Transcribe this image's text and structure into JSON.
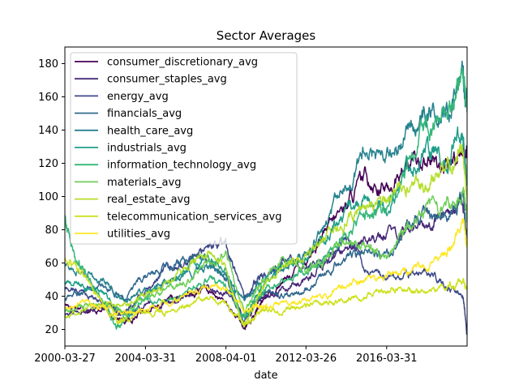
{
  "chart_data": {
    "type": "line",
    "title": "Sector Averages",
    "xlabel": "date",
    "ylabel": "",
    "xlim": [
      "2000-03-27",
      "2020-04-01"
    ],
    "ylim": [
      10,
      190
    ],
    "x_ticks": [
      "2000-03-27",
      "2004-03-31",
      "2008-04-01",
      "2012-03-26",
      "2016-03-31"
    ],
    "y_ticks": [
      20,
      40,
      60,
      80,
      100,
      120,
      140,
      160,
      180
    ],
    "legend_position": "top-left",
    "grid": false,
    "series": [
      {
        "name": "consumer_discretionary_avg",
        "color": "#440154",
        "points": [
          [
            "2000-03-27",
            35
          ],
          [
            "2001-03-27",
            33
          ],
          [
            "2002-03-27",
            31
          ],
          [
            "2003-03-27",
            24
          ],
          [
            "2004-03-27",
            32
          ],
          [
            "2005-03-27",
            36
          ],
          [
            "2006-03-27",
            40
          ],
          [
            "2007-03-27",
            44
          ],
          [
            "2008-03-27",
            36
          ],
          [
            "2009-03-01",
            20
          ],
          [
            "2009-09-27",
            30
          ],
          [
            "2010-03-27",
            40
          ],
          [
            "2011-03-27",
            50
          ],
          [
            "2012-03-27",
            62
          ],
          [
            "2013-03-27",
            78
          ],
          [
            "2014-03-27",
            96
          ],
          [
            "2015-03-27",
            112
          ],
          [
            "2016-03-27",
            104
          ],
          [
            "2017-03-27",
            118
          ],
          [
            "2018-03-27",
            124
          ],
          [
            "2019-03-27",
            116
          ],
          [
            "2020-01-15",
            130
          ],
          [
            "2020-04-01",
            124
          ]
        ]
      },
      {
        "name": "consumer_staples_avg",
        "color": "#482878",
        "points": [
          [
            "2000-03-27",
            30
          ],
          [
            "2001-03-27",
            32
          ],
          [
            "2002-03-27",
            34
          ],
          [
            "2003-03-27",
            30
          ],
          [
            "2004-03-27",
            33
          ],
          [
            "2005-03-27",
            36
          ],
          [
            "2006-03-27",
            40
          ],
          [
            "2007-03-27",
            44
          ],
          [
            "2008-03-27",
            42
          ],
          [
            "2009-03-01",
            28
          ],
          [
            "2009-09-27",
            36
          ],
          [
            "2010-03-27",
            40
          ],
          [
            "2011-03-27",
            44
          ],
          [
            "2012-03-27",
            50
          ],
          [
            "2013-03-27",
            60
          ],
          [
            "2014-03-27",
            68
          ],
          [
            "2015-03-27",
            74
          ],
          [
            "2016-03-27",
            78
          ],
          [
            "2017-03-27",
            80
          ],
          [
            "2018-03-27",
            84
          ],
          [
            "2019-03-27",
            90
          ],
          [
            "2020-01-15",
            98
          ],
          [
            "2020-04-01",
            90
          ]
        ]
      },
      {
        "name": "energy_avg",
        "color": "#3e4989",
        "points": [
          [
            "2000-03-27",
            45
          ],
          [
            "2001-03-27",
            42
          ],
          [
            "2002-03-27",
            36
          ],
          [
            "2003-03-27",
            30
          ],
          [
            "2004-03-27",
            42
          ],
          [
            "2005-03-27",
            55
          ],
          [
            "2006-03-27",
            62
          ],
          [
            "2007-03-27",
            68
          ],
          [
            "2008-03-27",
            72
          ],
          [
            "2009-03-01",
            38
          ],
          [
            "2009-09-27",
            48
          ],
          [
            "2010-03-27",
            52
          ],
          [
            "2011-03-27",
            62
          ],
          [
            "2012-03-27",
            58
          ],
          [
            "2013-03-27",
            62
          ],
          [
            "2014-03-27",
            74
          ],
          [
            "2015-03-27",
            58
          ],
          [
            "2016-03-27",
            48
          ],
          [
            "2017-03-27",
            54
          ],
          [
            "2018-03-27",
            56
          ],
          [
            "2019-03-27",
            46
          ],
          [
            "2020-01-15",
            42
          ],
          [
            "2020-04-01",
            18
          ]
        ]
      },
      {
        "name": "financials_avg",
        "color": "#31688e",
        "points": [
          [
            "2000-03-27",
            38
          ],
          [
            "2001-03-27",
            44
          ],
          [
            "2002-03-27",
            46
          ],
          [
            "2003-03-27",
            38
          ],
          [
            "2004-03-27",
            52
          ],
          [
            "2005-03-27",
            56
          ],
          [
            "2006-03-27",
            62
          ],
          [
            "2007-03-27",
            64
          ],
          [
            "2008-03-27",
            54
          ],
          [
            "2009-03-01",
            22
          ],
          [
            "2009-09-27",
            38
          ],
          [
            "2010-03-27",
            44
          ],
          [
            "2011-03-27",
            40
          ],
          [
            "2012-03-27",
            44
          ],
          [
            "2013-03-27",
            54
          ],
          [
            "2014-03-27",
            64
          ],
          [
            "2015-03-27",
            68
          ],
          [
            "2016-03-27",
            64
          ],
          [
            "2017-03-27",
            80
          ],
          [
            "2018-03-27",
            92
          ],
          [
            "2019-03-27",
            88
          ],
          [
            "2020-01-15",
            102
          ],
          [
            "2020-04-01",
            74
          ]
        ]
      },
      {
        "name": "health_care_avg",
        "color": "#26828e",
        "points": [
          [
            "2000-03-27",
            58
          ],
          [
            "2001-03-27",
            54
          ],
          [
            "2002-03-27",
            48
          ],
          [
            "2003-03-27",
            38
          ],
          [
            "2004-03-27",
            44
          ],
          [
            "2005-03-27",
            50
          ],
          [
            "2006-03-27",
            54
          ],
          [
            "2007-03-27",
            58
          ],
          [
            "2008-03-27",
            52
          ],
          [
            "2009-03-01",
            38
          ],
          [
            "2009-09-27",
            46
          ],
          [
            "2010-03-27",
            52
          ],
          [
            "2011-03-27",
            58
          ],
          [
            "2012-03-27",
            66
          ],
          [
            "2013-03-27",
            84
          ],
          [
            "2014-03-27",
            104
          ],
          [
            "2015-03-27",
            128
          ],
          [
            "2016-03-27",
            120
          ],
          [
            "2017-03-27",
            136
          ],
          [
            "2018-03-27",
            148
          ],
          [
            "2019-03-27",
            152
          ],
          [
            "2020-01-15",
            172
          ],
          [
            "2020-04-01",
            160
          ]
        ]
      },
      {
        "name": "industrials_avg",
        "color": "#1f9e89",
        "points": [
          [
            "2000-03-27",
            48
          ],
          [
            "2001-03-27",
            46
          ],
          [
            "2002-03-27",
            40
          ],
          [
            "2003-03-27",
            28
          ],
          [
            "2004-03-27",
            40
          ],
          [
            "2005-03-27",
            46
          ],
          [
            "2006-03-27",
            56
          ],
          [
            "2007-03-27",
            64
          ],
          [
            "2008-03-27",
            56
          ],
          [
            "2009-03-01",
            26
          ],
          [
            "2009-09-27",
            40
          ],
          [
            "2010-03-27",
            50
          ],
          [
            "2011-03-27",
            60
          ],
          [
            "2012-03-27",
            62
          ],
          [
            "2013-03-27",
            76
          ],
          [
            "2014-03-27",
            92
          ],
          [
            "2015-03-27",
            96
          ],
          [
            "2016-03-27",
            94
          ],
          [
            "2017-03-27",
            112
          ],
          [
            "2018-03-27",
            130
          ],
          [
            "2019-03-27",
            120
          ],
          [
            "2020-01-15",
            138
          ],
          [
            "2020-04-01",
            108
          ]
        ]
      },
      {
        "name": "information_technology_avg",
        "color": "#35b779",
        "points": [
          [
            "2000-03-27",
            88
          ],
          [
            "2000-09-27",
            62
          ],
          [
            "2001-03-27",
            54
          ],
          [
            "2002-03-27",
            36
          ],
          [
            "2002-10-10",
            20
          ],
          [
            "2003-03-27",
            26
          ],
          [
            "2004-03-27",
            38
          ],
          [
            "2005-03-27",
            36
          ],
          [
            "2006-03-27",
            42
          ],
          [
            "2007-03-27",
            50
          ],
          [
            "2008-03-27",
            46
          ],
          [
            "2009-03-01",
            26
          ],
          [
            "2009-09-27",
            38
          ],
          [
            "2010-03-27",
            44
          ],
          [
            "2011-03-27",
            48
          ],
          [
            "2012-03-27",
            56
          ],
          [
            "2013-03-27",
            62
          ],
          [
            "2014-03-27",
            78
          ],
          [
            "2015-03-27",
            88
          ],
          [
            "2016-03-27",
            92
          ],
          [
            "2017-03-27",
            116
          ],
          [
            "2018-03-27",
            142
          ],
          [
            "2019-03-27",
            146
          ],
          [
            "2020-01-15",
            180
          ],
          [
            "2020-04-01",
            158
          ]
        ]
      },
      {
        "name": "materials_avg",
        "color": "#6ece58",
        "points": [
          [
            "2000-03-27",
            30
          ],
          [
            "2001-03-27",
            34
          ],
          [
            "2002-03-27",
            36
          ],
          [
            "2003-03-27",
            28
          ],
          [
            "2004-03-27",
            38
          ],
          [
            "2005-03-27",
            42
          ],
          [
            "2006-03-27",
            50
          ],
          [
            "2007-03-27",
            60
          ],
          [
            "2008-03-27",
            66
          ],
          [
            "2009-03-01",
            30
          ],
          [
            "2009-09-27",
            44
          ],
          [
            "2010-03-27",
            52
          ],
          [
            "2011-03-27",
            62
          ],
          [
            "2012-03-27",
            56
          ],
          [
            "2013-03-27",
            62
          ],
          [
            "2014-03-27",
            74
          ],
          [
            "2015-03-27",
            70
          ],
          [
            "2016-03-27",
            62
          ],
          [
            "2017-03-27",
            82
          ],
          [
            "2018-03-27",
            96
          ],
          [
            "2019-03-27",
            92
          ],
          [
            "2020-01-15",
            104
          ],
          [
            "2020-04-01",
            84
          ]
        ]
      },
      {
        "name": "real_estate_avg",
        "color": "#b5de2b",
        "points": [
          [
            "2000-03-27",
            28
          ],
          [
            "2001-03-27",
            32
          ],
          [
            "2002-03-27",
            36
          ],
          [
            "2003-03-27",
            34
          ],
          [
            "2004-03-27",
            42
          ],
          [
            "2005-03-27",
            48
          ],
          [
            "2006-03-27",
            58
          ],
          [
            "2007-03-27",
            66
          ],
          [
            "2008-03-27",
            56
          ],
          [
            "2009-03-01",
            22
          ],
          [
            "2009-09-27",
            36
          ],
          [
            "2010-03-27",
            48
          ],
          [
            "2011-03-27",
            58
          ],
          [
            "2012-03-27",
            66
          ],
          [
            "2013-03-27",
            74
          ],
          [
            "2014-03-27",
            84
          ],
          [
            "2015-03-27",
            96
          ],
          [
            "2016-03-27",
            100
          ],
          [
            "2017-03-27",
            108
          ],
          [
            "2018-03-27",
            106
          ],
          [
            "2019-03-27",
            118
          ],
          [
            "2020-01-15",
            126
          ],
          [
            "2020-04-01",
            98
          ]
        ]
      },
      {
        "name": "telecommunication_services_avg",
        "color": "#cde11d",
        "points": [
          [
            "2000-03-27",
            62
          ],
          [
            "2001-03-27",
            52
          ],
          [
            "2002-03-27",
            34
          ],
          [
            "2002-10-10",
            24
          ],
          [
            "2003-03-27",
            26
          ],
          [
            "2004-03-27",
            30
          ],
          [
            "2005-03-27",
            30
          ],
          [
            "2006-03-27",
            34
          ],
          [
            "2007-03-27",
            40
          ],
          [
            "2008-03-27",
            36
          ],
          [
            "2009-03-01",
            24
          ],
          [
            "2009-09-27",
            28
          ],
          [
            "2010-03-27",
            30
          ],
          [
            "2011-03-27",
            32
          ],
          [
            "2012-03-27",
            34
          ],
          [
            "2013-03-27",
            36
          ],
          [
            "2014-03-27",
            38
          ],
          [
            "2015-03-27",
            40
          ],
          [
            "2016-03-27",
            44
          ],
          [
            "2017-03-27",
            44
          ],
          [
            "2018-03-27",
            42
          ],
          [
            "2019-03-27",
            46
          ],
          [
            "2020-01-15",
            50
          ],
          [
            "2020-04-01",
            44
          ]
        ]
      },
      {
        "name": "utilities_avg",
        "color": "#fde725",
        "points": [
          [
            "2000-03-27",
            32
          ],
          [
            "2001-03-27",
            36
          ],
          [
            "2002-03-27",
            32
          ],
          [
            "2003-03-27",
            30
          ],
          [
            "2004-03-27",
            32
          ],
          [
            "2005-03-27",
            36
          ],
          [
            "2006-03-27",
            40
          ],
          [
            "2007-03-27",
            46
          ],
          [
            "2008-03-27",
            44
          ],
          [
            "2009-03-01",
            32
          ],
          [
            "2009-09-27",
            34
          ],
          [
            "2010-03-27",
            34
          ],
          [
            "2011-03-27",
            36
          ],
          [
            "2012-03-27",
            38
          ],
          [
            "2013-03-27",
            40
          ],
          [
            "2014-03-27",
            46
          ],
          [
            "2015-03-27",
            50
          ],
          [
            "2016-03-27",
            52
          ],
          [
            "2017-03-27",
            56
          ],
          [
            "2018-03-27",
            58
          ],
          [
            "2019-03-27",
            66
          ],
          [
            "2020-01-15",
            84
          ],
          [
            "2020-04-01",
            70
          ]
        ]
      }
    ]
  }
}
